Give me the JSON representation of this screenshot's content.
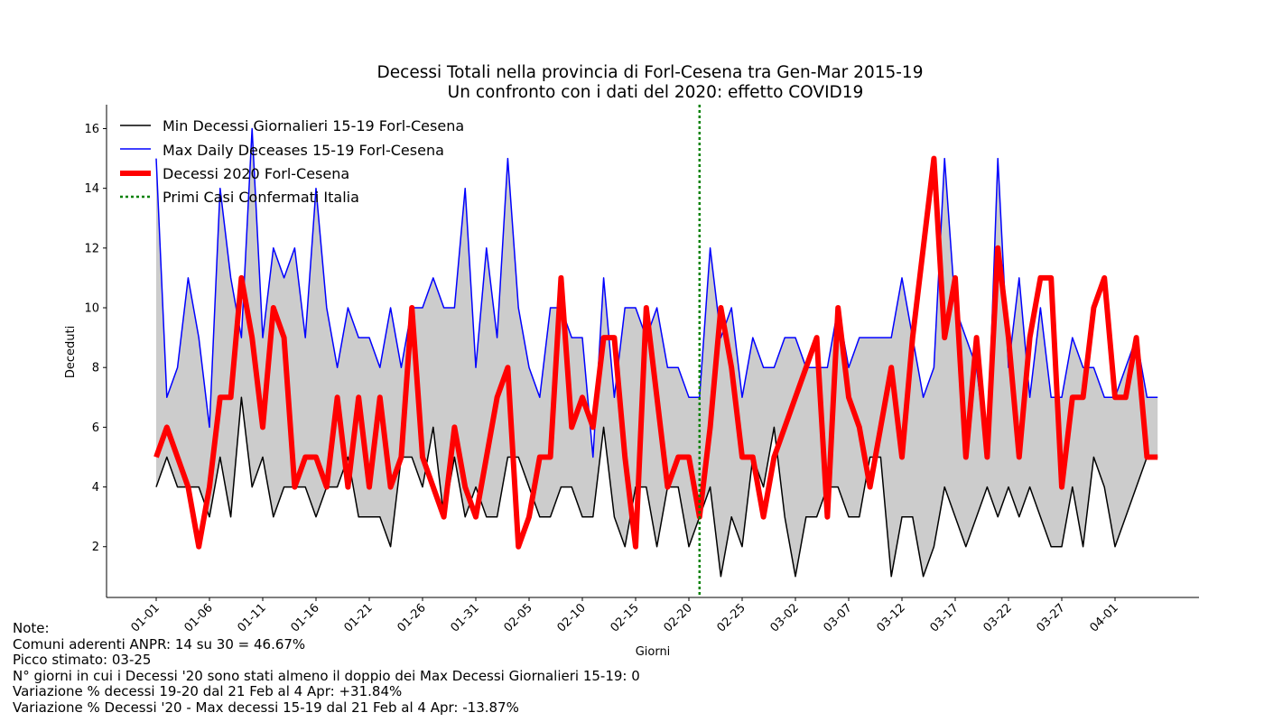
{
  "chart_data": {
    "type": "line",
    "title": "Decessi Totali nella provincia di Forl-Cesena tra Gen-Mar 2015-19",
    "subtitle": "Un confronto con i dati del 2020: effetto COVID19",
    "xlabel": "Giorni",
    "ylabel": "Deceduti",
    "ylim": [
      0.3,
      16.8
    ],
    "yticks": [
      2,
      4,
      6,
      8,
      10,
      12,
      14,
      16
    ],
    "xtick_labels": [
      "01-01",
      "01-06",
      "01-11",
      "01-16",
      "01-21",
      "01-26",
      "01-31",
      "02-05",
      "02-10",
      "02-15",
      "02-20",
      "02-25",
      "03-02",
      "03-07",
      "03-12",
      "03-17",
      "03-22",
      "03-27",
      "04-01"
    ],
    "xtick_step": 5,
    "n_days": 95,
    "vline": {
      "day_index": 51,
      "label": "Primi Casi Confermati Italia",
      "color": "#008000"
    },
    "legend_position": "upper-left",
    "fill_color": "#cccccc",
    "series": [
      {
        "name": "Min Decessi Giornalieri 15-19 Forl-Cesena",
        "color": "#000000",
        "width": 1.5,
        "values": [
          4,
          5,
          4,
          4,
          4,
          3,
          5,
          3,
          7,
          4,
          5,
          3,
          4,
          4,
          4,
          3,
          4,
          4,
          5,
          3,
          3,
          3,
          2,
          5,
          5,
          4,
          6,
          3,
          5,
          3,
          4,
          3,
          3,
          5,
          5,
          4,
          3,
          3,
          4,
          4,
          3,
          3,
          6,
          3,
          2,
          4,
          4,
          2,
          4,
          4,
          2,
          3,
          4,
          1,
          3,
          2,
          5,
          4,
          6,
          3,
          1,
          3,
          3,
          4,
          4,
          3,
          3,
          5,
          5,
          1,
          3,
          3,
          1,
          2,
          4,
          3,
          2,
          3,
          4,
          3,
          4,
          3,
          4,
          3,
          2,
          2,
          4,
          2,
          5,
          4,
          2,
          3,
          4,
          5,
          5
        ]
      },
      {
        "name": "Max Daily Deceases 15-19 Forl-Cesena",
        "color": "#0000ff",
        "width": 1.5,
        "values": [
          15,
          7,
          8,
          11,
          9,
          6,
          14,
          11,
          9,
          16,
          9,
          12,
          11,
          12,
          9,
          14,
          10,
          8,
          10,
          9,
          9,
          8,
          10,
          8,
          10,
          10,
          11,
          10,
          10,
          14,
          8,
          12,
          9,
          15,
          10,
          8,
          7,
          10,
          10,
          9,
          9,
          5,
          11,
          7,
          10,
          10,
          9,
          10,
          8,
          8,
          7,
          7,
          12,
          9,
          10,
          7,
          9,
          8,
          8,
          9,
          9,
          8,
          8,
          8,
          10,
          8,
          9,
          9,
          9,
          9,
          11,
          9,
          7,
          8,
          15,
          10,
          9,
          8,
          5,
          15,
          8,
          11,
          7,
          10,
          7,
          7,
          9,
          8,
          8,
          7,
          7,
          8,
          9,
          7,
          7
        ]
      },
      {
        "name": "Decessi 2020 Forl-Cesena",
        "color": "#ff0000",
        "width": 6,
        "values": [
          5,
          6,
          5,
          4,
          2,
          4,
          7,
          7,
          11,
          9,
          6,
          10,
          9,
          4,
          5,
          5,
          4,
          7,
          4,
          7,
          4,
          7,
          4,
          5,
          10,
          5,
          4,
          3,
          6,
          4,
          3,
          5,
          7,
          8,
          2,
          3,
          5,
          5,
          11,
          6,
          7,
          6,
          9,
          9,
          5,
          2,
          10,
          7,
          4,
          5,
          5,
          3,
          6,
          10,
          8,
          5,
          5,
          3,
          5,
          6,
          7,
          8,
          9,
          3,
          10,
          7,
          6,
          4,
          6,
          8,
          5,
          9,
          12,
          15,
          9,
          11,
          5,
          9,
          5,
          12,
          9,
          5,
          9,
          11,
          11,
          4,
          7,
          7,
          10,
          11,
          7,
          7,
          9,
          5,
          5
        ]
      }
    ]
  },
  "notes": [
    "Note:",
    "Comuni aderenti ANPR: 14 su 30 = 46.67%",
    "Picco stimato: 03-25",
    "N° giorni in cui i Decessi '20 sono stati almeno il doppio dei Max Decessi Giornalieri 15-19: 0",
    "Variazione % decessi 19-20 dal 21 Feb al 4 Apr: +31.84%",
    "Variazione % Decessi '20 - Max decessi 15-19 dal 21 Feb al 4 Apr: -13.87%"
  ]
}
